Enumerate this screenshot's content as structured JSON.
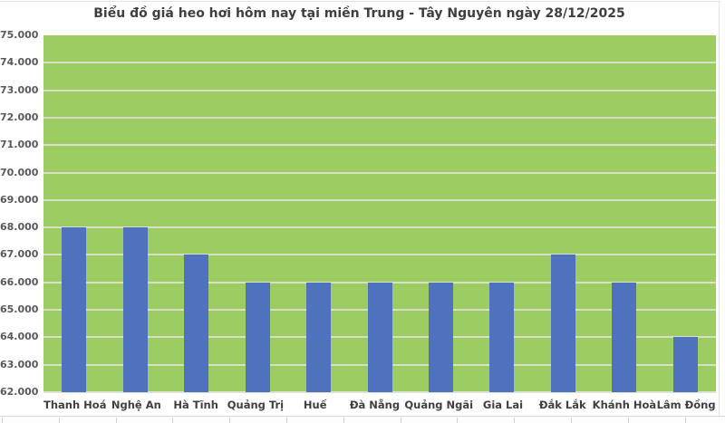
{
  "chart_data": {
    "type": "bar",
    "title": "Biểu đồ giá heo hơi hôm nay tại miền Trung - Tây Nguyên ngày 28/12/2025",
    "categories": [
      "Thanh Hoá",
      "Nghệ An",
      "Hà Tĩnh",
      "Quảng Trị",
      "Huế",
      "Đà Nẵng",
      "Quảng Ngãi",
      "Gia Lai",
      "Đắk Lắk",
      "Khánh Hoà",
      "Lâm Đồng"
    ],
    "values": [
      68000,
      68000,
      67000,
      66000,
      66000,
      66000,
      66000,
      66000,
      67000,
      66000,
      64000
    ],
    "xlabel": "",
    "ylabel": "",
    "ylim": [
      62000,
      75000
    ],
    "ytick_step": 1000,
    "ytick_labels": [
      "75.000",
      "74.000",
      "73.000",
      "72.000",
      "71.000",
      "70.000",
      "69.000",
      "68.000",
      "67.000",
      "66.000",
      "65.000",
      "64.000",
      "63.000",
      "62.000"
    ],
    "grid": true,
    "legend": false,
    "colors": {
      "bar": "#4e72bd",
      "plot_background": "#9ccc62",
      "gridline": "#d7e0c6",
      "ytick_label": "#595959",
      "category_label": "#404040",
      "title": "#3f3f3f"
    }
  },
  "bottom_table": {
    "visible_columns": 13
  }
}
